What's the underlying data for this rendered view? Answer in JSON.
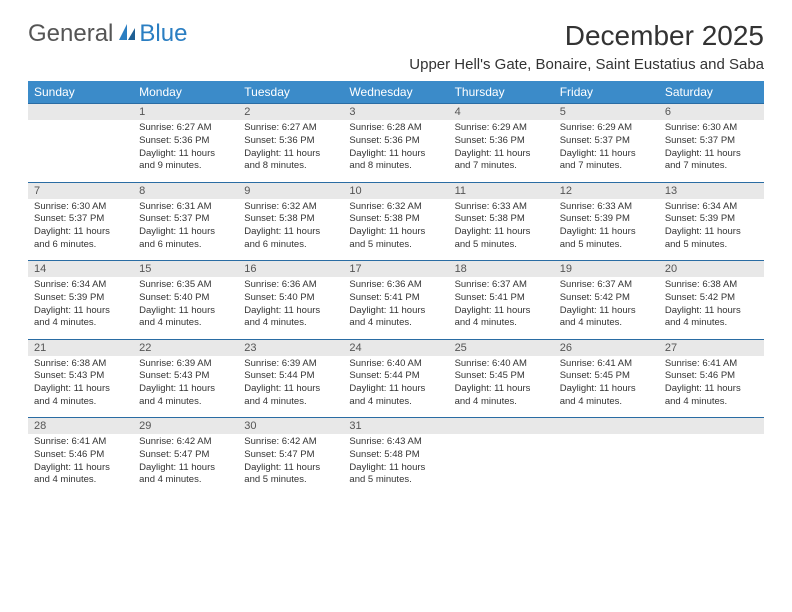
{
  "brand": {
    "general": "General",
    "blue": "Blue"
  },
  "title": "December 2025",
  "location": "Upper Hell's Gate, Bonaire, Saint Eustatius and Saba",
  "colors": {
    "header_bg": "#3b8bc9",
    "header_text": "#ffffff",
    "daynum_bg": "#e8e8e8",
    "border": "#2a6ca3",
    "logo_blue": "#2a7ec2",
    "text": "#333333"
  },
  "typography": {
    "title_fontsize": 28,
    "location_fontsize": 15,
    "dow_fontsize": 12,
    "daynum_fontsize": 11,
    "detail_fontsize": 9.5
  },
  "days_of_week": [
    "Sunday",
    "Monday",
    "Tuesday",
    "Wednesday",
    "Thursday",
    "Friday",
    "Saturday"
  ],
  "weeks": [
    {
      "nums": [
        "",
        "1",
        "2",
        "3",
        "4",
        "5",
        "6"
      ],
      "cells": [
        null,
        {
          "sunrise": "Sunrise: 6:27 AM",
          "sunset": "Sunset: 5:36 PM",
          "daylight1": "Daylight: 11 hours",
          "daylight2": "and 9 minutes."
        },
        {
          "sunrise": "Sunrise: 6:27 AM",
          "sunset": "Sunset: 5:36 PM",
          "daylight1": "Daylight: 11 hours",
          "daylight2": "and 8 minutes."
        },
        {
          "sunrise": "Sunrise: 6:28 AM",
          "sunset": "Sunset: 5:36 PM",
          "daylight1": "Daylight: 11 hours",
          "daylight2": "and 8 minutes."
        },
        {
          "sunrise": "Sunrise: 6:29 AM",
          "sunset": "Sunset: 5:36 PM",
          "daylight1": "Daylight: 11 hours",
          "daylight2": "and 7 minutes."
        },
        {
          "sunrise": "Sunrise: 6:29 AM",
          "sunset": "Sunset: 5:37 PM",
          "daylight1": "Daylight: 11 hours",
          "daylight2": "and 7 minutes."
        },
        {
          "sunrise": "Sunrise: 6:30 AM",
          "sunset": "Sunset: 5:37 PM",
          "daylight1": "Daylight: 11 hours",
          "daylight2": "and 7 minutes."
        }
      ]
    },
    {
      "nums": [
        "7",
        "8",
        "9",
        "10",
        "11",
        "12",
        "13"
      ],
      "cells": [
        {
          "sunrise": "Sunrise: 6:30 AM",
          "sunset": "Sunset: 5:37 PM",
          "daylight1": "Daylight: 11 hours",
          "daylight2": "and 6 minutes."
        },
        {
          "sunrise": "Sunrise: 6:31 AM",
          "sunset": "Sunset: 5:37 PM",
          "daylight1": "Daylight: 11 hours",
          "daylight2": "and 6 minutes."
        },
        {
          "sunrise": "Sunrise: 6:32 AM",
          "sunset": "Sunset: 5:38 PM",
          "daylight1": "Daylight: 11 hours",
          "daylight2": "and 6 minutes."
        },
        {
          "sunrise": "Sunrise: 6:32 AM",
          "sunset": "Sunset: 5:38 PM",
          "daylight1": "Daylight: 11 hours",
          "daylight2": "and 5 minutes."
        },
        {
          "sunrise": "Sunrise: 6:33 AM",
          "sunset": "Sunset: 5:38 PM",
          "daylight1": "Daylight: 11 hours",
          "daylight2": "and 5 minutes."
        },
        {
          "sunrise": "Sunrise: 6:33 AM",
          "sunset": "Sunset: 5:39 PM",
          "daylight1": "Daylight: 11 hours",
          "daylight2": "and 5 minutes."
        },
        {
          "sunrise": "Sunrise: 6:34 AM",
          "sunset": "Sunset: 5:39 PM",
          "daylight1": "Daylight: 11 hours",
          "daylight2": "and 5 minutes."
        }
      ]
    },
    {
      "nums": [
        "14",
        "15",
        "16",
        "17",
        "18",
        "19",
        "20"
      ],
      "cells": [
        {
          "sunrise": "Sunrise: 6:34 AM",
          "sunset": "Sunset: 5:39 PM",
          "daylight1": "Daylight: 11 hours",
          "daylight2": "and 4 minutes."
        },
        {
          "sunrise": "Sunrise: 6:35 AM",
          "sunset": "Sunset: 5:40 PM",
          "daylight1": "Daylight: 11 hours",
          "daylight2": "and 4 minutes."
        },
        {
          "sunrise": "Sunrise: 6:36 AM",
          "sunset": "Sunset: 5:40 PM",
          "daylight1": "Daylight: 11 hours",
          "daylight2": "and 4 minutes."
        },
        {
          "sunrise": "Sunrise: 6:36 AM",
          "sunset": "Sunset: 5:41 PM",
          "daylight1": "Daylight: 11 hours",
          "daylight2": "and 4 minutes."
        },
        {
          "sunrise": "Sunrise: 6:37 AM",
          "sunset": "Sunset: 5:41 PM",
          "daylight1": "Daylight: 11 hours",
          "daylight2": "and 4 minutes."
        },
        {
          "sunrise": "Sunrise: 6:37 AM",
          "sunset": "Sunset: 5:42 PM",
          "daylight1": "Daylight: 11 hours",
          "daylight2": "and 4 minutes."
        },
        {
          "sunrise": "Sunrise: 6:38 AM",
          "sunset": "Sunset: 5:42 PM",
          "daylight1": "Daylight: 11 hours",
          "daylight2": "and 4 minutes."
        }
      ]
    },
    {
      "nums": [
        "21",
        "22",
        "23",
        "24",
        "25",
        "26",
        "27"
      ],
      "cells": [
        {
          "sunrise": "Sunrise: 6:38 AM",
          "sunset": "Sunset: 5:43 PM",
          "daylight1": "Daylight: 11 hours",
          "daylight2": "and 4 minutes."
        },
        {
          "sunrise": "Sunrise: 6:39 AM",
          "sunset": "Sunset: 5:43 PM",
          "daylight1": "Daylight: 11 hours",
          "daylight2": "and 4 minutes."
        },
        {
          "sunrise": "Sunrise: 6:39 AM",
          "sunset": "Sunset: 5:44 PM",
          "daylight1": "Daylight: 11 hours",
          "daylight2": "and 4 minutes."
        },
        {
          "sunrise": "Sunrise: 6:40 AM",
          "sunset": "Sunset: 5:44 PM",
          "daylight1": "Daylight: 11 hours",
          "daylight2": "and 4 minutes."
        },
        {
          "sunrise": "Sunrise: 6:40 AM",
          "sunset": "Sunset: 5:45 PM",
          "daylight1": "Daylight: 11 hours",
          "daylight2": "and 4 minutes."
        },
        {
          "sunrise": "Sunrise: 6:41 AM",
          "sunset": "Sunset: 5:45 PM",
          "daylight1": "Daylight: 11 hours",
          "daylight2": "and 4 minutes."
        },
        {
          "sunrise": "Sunrise: 6:41 AM",
          "sunset": "Sunset: 5:46 PM",
          "daylight1": "Daylight: 11 hours",
          "daylight2": "and 4 minutes."
        }
      ]
    },
    {
      "nums": [
        "28",
        "29",
        "30",
        "31",
        "",
        "",
        ""
      ],
      "cells": [
        {
          "sunrise": "Sunrise: 6:41 AM",
          "sunset": "Sunset: 5:46 PM",
          "daylight1": "Daylight: 11 hours",
          "daylight2": "and 4 minutes."
        },
        {
          "sunrise": "Sunrise: 6:42 AM",
          "sunset": "Sunset: 5:47 PM",
          "daylight1": "Daylight: 11 hours",
          "daylight2": "and 4 minutes."
        },
        {
          "sunrise": "Sunrise: 6:42 AM",
          "sunset": "Sunset: 5:47 PM",
          "daylight1": "Daylight: 11 hours",
          "daylight2": "and 5 minutes."
        },
        {
          "sunrise": "Sunrise: 6:43 AM",
          "sunset": "Sunset: 5:48 PM",
          "daylight1": "Daylight: 11 hours",
          "daylight2": "and 5 minutes."
        },
        null,
        null,
        null
      ]
    }
  ]
}
